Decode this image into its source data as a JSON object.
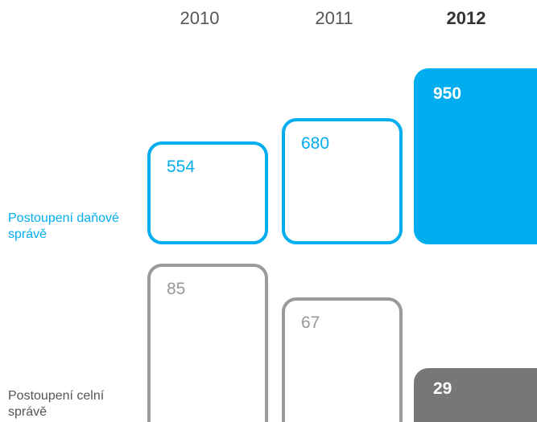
{
  "chart_data": {
    "type": "box-columns",
    "categories": [
      "2010",
      "2011",
      "2012"
    ],
    "series": [
      {
        "name": "Postoupení daňové správě",
        "color": "#00aeef",
        "values": [
          554,
          680,
          950
        ]
      },
      {
        "name": "Postoupení celní správě",
        "color": "#9a9a9a",
        "values": [
          85,
          67,
          29
        ]
      }
    ]
  }
}
